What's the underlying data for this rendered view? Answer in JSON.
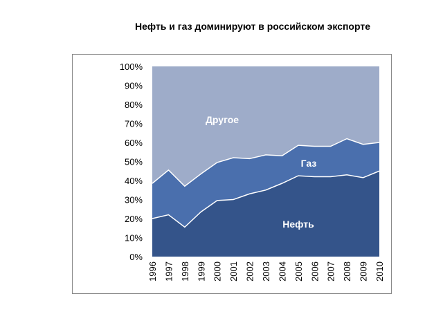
{
  "page": {
    "title": "Нефть и газ доминируют в российском экспорте"
  },
  "chart_data": {
    "type": "area",
    "stacked": true,
    "normalized_percent": true,
    "title": "Нефть и газ доминируют в российском экспорте",
    "xlabel": "",
    "ylabel": "",
    "categories": [
      "1996",
      "1997",
      "1998",
      "1999",
      "2000",
      "2001",
      "2002",
      "2003",
      "2004",
      "2005",
      "2006",
      "2007",
      "2008",
      "2009",
      "2010"
    ],
    "ylim": [
      0,
      100
    ],
    "y_ticks": [
      "0%",
      "10%",
      "20%",
      "30%",
      "40%",
      "50%",
      "60%",
      "70%",
      "80%",
      "90%",
      "100%"
    ],
    "series": [
      {
        "name": "Нефть",
        "color": "#34548a",
        "values": [
          20,
          22,
          15.5,
          23.5,
          29.5,
          30,
          33,
          35,
          38.5,
          42.5,
          42,
          42,
          43,
          41.5,
          45
        ]
      },
      {
        "name": "Газ",
        "color": "#4a6fad",
        "values": [
          18.5,
          23.5,
          21.5,
          20,
          20,
          22,
          18.5,
          18.5,
          14.5,
          16,
          16,
          16,
          19,
          17.5,
          15
        ]
      },
      {
        "name": "Другое",
        "color": "#9eacc9",
        "values": [
          61.5,
          54.5,
          63,
          56.5,
          50.5,
          48,
          48.5,
          46.5,
          47,
          41.5,
          42,
          42,
          38,
          41,
          40
        ]
      }
    ],
    "grid": false,
    "legend": "none (labels placed inside areas)"
  }
}
